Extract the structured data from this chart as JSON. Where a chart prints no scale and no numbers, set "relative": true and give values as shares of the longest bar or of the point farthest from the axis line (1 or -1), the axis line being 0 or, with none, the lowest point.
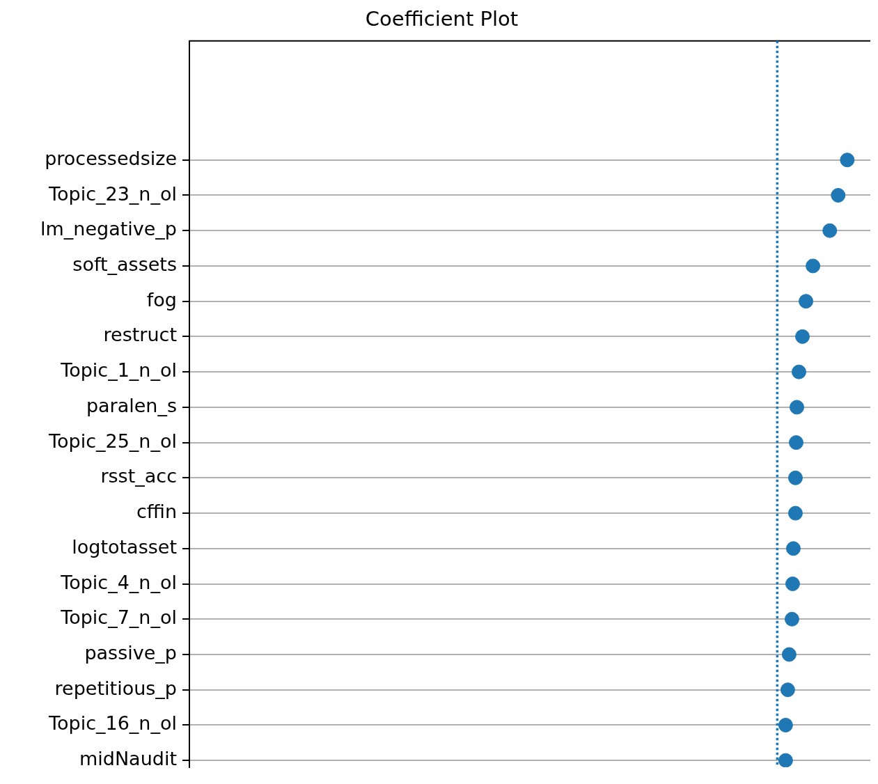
{
  "chart_data": {
    "type": "scatter",
    "title": "Coefficient Plot",
    "orientation": "horizontal",
    "relative": true,
    "categories": [
      "processedsize",
      "Topic_23_n_ol",
      "lm_negative_p",
      "soft_assets",
      "fog",
      "restruct",
      "Topic_1_n_ol",
      "paralen_s",
      "Topic_25_n_ol",
      "rsst_acc",
      "cffin",
      "logtotasset",
      "Topic_4_n_ol",
      "Topic_7_n_ol",
      "passive_p",
      "repetitious_p",
      "Topic_16_n_ol",
      "midNaudit"
    ],
    "values": [
      1,
      0.87,
      0.75,
      0.51,
      0.41,
      0.36,
      0.31,
      0.28,
      0.27,
      0.26,
      0.26,
      0.23,
      0.22,
      0.21,
      0.17,
      0.15,
      0.12,
      0.12
    ],
    "color": "#1f77b4",
    "marker": "circle",
    "grid": "y",
    "tick_labels": "y",
    "ref_lines": [
      {
        "axis": "x",
        "value": 0,
        "line_style": "dotted",
        "color": "#1f77b4"
      }
    ]
  }
}
